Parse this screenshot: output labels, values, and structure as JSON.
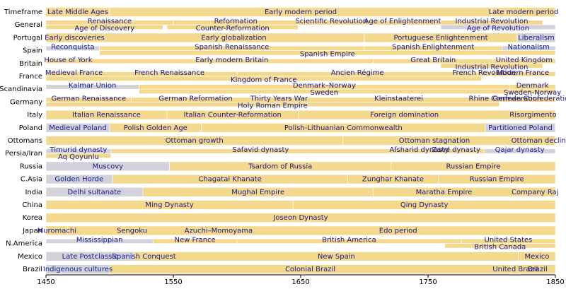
{
  "chart_data": {
    "type": "timeline",
    "xlim": [
      1450,
      1850
    ],
    "xticks": [
      1450,
      1550,
      1650,
      1750,
      1850
    ],
    "rows": [
      {
        "name": "Timeframe",
        "segments": [
          {
            "label": "Late Middle Ages",
            "start": 1450,
            "end": 1500,
            "color": "#f3d98e"
          },
          {
            "label": "Early modern period",
            "start": 1500,
            "end": 1800,
            "color": "#f3d98e"
          },
          {
            "label": "Late modern period",
            "start": 1800,
            "end": 1850,
            "color": "#f3d98e"
          }
        ]
      },
      {
        "name": "General",
        "segments": [
          {
            "label": "Renaissance",
            "start": 1450,
            "end": 1550,
            "color": "#f3d98e"
          },
          {
            "label": "Age of Discovery",
            "start": 1450,
            "end": 1542,
            "color": "#f3d98e"
          },
          {
            "label": "Reformation",
            "start": 1550,
            "end": 1648,
            "color": "#f3d98e"
          },
          {
            "label": "Counter-Reformation",
            "start": 1545,
            "end": 1648,
            "color": "#f3d98e"
          },
          {
            "label": "Scientific Revolution",
            "start": 1648,
            "end": 1700,
            "color": "#f3d98e"
          },
          {
            "label": "Age of Enlightenment",
            "start": 1700,
            "end": 1760,
            "color": "#f3d98e"
          },
          {
            "label": "Industrial Revolution",
            "start": 1760,
            "end": 1840,
            "color": "#f3d98e"
          },
          {
            "label": "Age of Revolution",
            "start": 1760,
            "end": 1850,
            "color": "#d2d2da"
          }
        ]
      },
      {
        "name": "Portugal",
        "segments": [
          {
            "label": "Early discoveries",
            "start": 1450,
            "end": 1495,
            "color": "#f3d98e"
          },
          {
            "label": "Early globalization",
            "start": 1495,
            "end": 1700,
            "color": "#f3d98e"
          },
          {
            "label": "Portuguese Enlightenment",
            "start": 1700,
            "end": 1820,
            "color": "#f3d98e"
          },
          {
            "label": "Liberalism",
            "start": 1820,
            "end": 1850,
            "color": "#d2d2da"
          }
        ]
      },
      {
        "name": "Spain",
        "segments": [
          {
            "label": "Reconquista",
            "start": 1450,
            "end": 1492,
            "color": "#d2d2da"
          },
          {
            "label": "Spanish Renaissance",
            "start": 1492,
            "end": 1700,
            "color": "#f3d98e"
          },
          {
            "label": "Spanish Enlightenment",
            "start": 1700,
            "end": 1808,
            "color": "#f3d98e"
          },
          {
            "label": "Nationalism",
            "start": 1808,
            "end": 1850,
            "color": "#d2d2da"
          },
          {
            "label": "Spanish Empire",
            "start": 1492,
            "end": 1850,
            "color": "#f3d98e"
          }
        ]
      },
      {
        "name": "Britain",
        "segments": [
          {
            "label": "House of York",
            "start": 1450,
            "end": 1485,
            "color": "#f3d98e"
          },
          {
            "label": "Early modern Britain",
            "start": 1485,
            "end": 1707,
            "color": "#f3d98e"
          },
          {
            "label": "Great Britain",
            "start": 1707,
            "end": 1801,
            "color": "#f3d98e"
          },
          {
            "label": "United Kingdom",
            "start": 1801,
            "end": 1850,
            "color": "#f3d98e"
          },
          {
            "label": "Industrial Revolution",
            "start": 1760,
            "end": 1840,
            "color": "#f3d98e"
          }
        ]
      },
      {
        "name": "France",
        "segments": [
          {
            "label": "Medieval France",
            "start": 1450,
            "end": 1494,
            "color": "#f3d98e"
          },
          {
            "label": "French Renaissance",
            "start": 1494,
            "end": 1600,
            "color": "#f3d98e"
          },
          {
            "label": "Ancien Régime",
            "start": 1600,
            "end": 1789,
            "color": "#f3d98e"
          },
          {
            "label": "French Revolution",
            "start": 1789,
            "end": 1799,
            "color": "#f3d98e"
          },
          {
            "label": "Modern France",
            "start": 1799,
            "end": 1850,
            "color": "#f3d98e"
          },
          {
            "label": "Kingdom of France",
            "start": 1450,
            "end": 1792,
            "color": "#f3d98e"
          }
        ]
      },
      {
        "name": "Scandinavia",
        "segments": [
          {
            "label": "Kalmar Union",
            "start": 1450,
            "end": 1523,
            "color": "#d2d2da"
          },
          {
            "label": "Denmark–Norway",
            "start": 1523,
            "end": 1814,
            "color": "#f3d98e"
          },
          {
            "label": "Denmark",
            "start": 1814,
            "end": 1850,
            "color": "#f3d98e"
          },
          {
            "label": "Sweden",
            "start": 1523,
            "end": 1814,
            "color": "#f3d98e"
          },
          {
            "label": "Sweden-Norway",
            "start": 1814,
            "end": 1850,
            "color": "#f3d98e"
          }
        ]
      },
      {
        "name": "Germany",
        "segments": [
          {
            "label": "German Renaissance",
            "start": 1450,
            "end": 1517,
            "color": "#f3d98e"
          },
          {
            "label": "German Reformation",
            "start": 1517,
            "end": 1618,
            "color": "#f3d98e"
          },
          {
            "label": "Thirty Years War",
            "start": 1618,
            "end": 1648,
            "color": "#f3d98e"
          },
          {
            "label": "Kleinstaaterei",
            "start": 1648,
            "end": 1806,
            "color": "#f3d98e"
          },
          {
            "label": "Rhine Confederation",
            "start": 1806,
            "end": 1815,
            "color": "#f3d98e"
          },
          {
            "label": "German Confederation",
            "start": 1815,
            "end": 1850,
            "color": "#f3d98e"
          },
          {
            "label": "Holy Roman Empire",
            "start": 1450,
            "end": 1806,
            "color": "#f3d98e"
          }
        ]
      },
      {
        "name": "Italy",
        "segments": [
          {
            "label": "Italian Renaissance",
            "start": 1450,
            "end": 1545,
            "color": "#f3d98e"
          },
          {
            "label": "Italian Counter-Reformation",
            "start": 1545,
            "end": 1648,
            "color": "#f3d98e"
          },
          {
            "label": "Foreign domination",
            "start": 1648,
            "end": 1815,
            "color": "#f3d98e"
          },
          {
            "label": "Risorgimento",
            "start": 1815,
            "end": 1850,
            "color": "#f3d98e"
          }
        ]
      },
      {
        "name": "Poland",
        "segments": [
          {
            "label": "Medieval Poland",
            "start": 1450,
            "end": 1500,
            "color": "#d2d2da"
          },
          {
            "label": "Polish Golden Age",
            "start": 1500,
            "end": 1572,
            "color": "#f3d98e"
          },
          {
            "label": "Polish-Lithuanian Commonwealth",
            "start": 1572,
            "end": 1795,
            "color": "#f3d98e"
          },
          {
            "label": "Partitioned Poland",
            "start": 1795,
            "end": 1850,
            "color": "#d2d2da"
          }
        ]
      },
      {
        "name": "Ottomans",
        "segments": [
          {
            "label": "Ottoman growth",
            "start": 1450,
            "end": 1683,
            "color": "#f3d98e"
          },
          {
            "label": "Ottoman stagnation",
            "start": 1683,
            "end": 1827,
            "color": "#f3d98e"
          },
          {
            "label": "Ottoman decline",
            "start": 1827,
            "end": 1850,
            "color": "#f3d98e"
          }
        ]
      },
      {
        "name": "Persia/Iran",
        "segments": [
          {
            "label": "Timurid dynasty",
            "start": 1450,
            "end": 1501,
            "color": "#d2d2da"
          },
          {
            "label": "Safavid dynasty",
            "start": 1501,
            "end": 1736,
            "color": "#f3d98e"
          },
          {
            "label": "Afsharid dynasty",
            "start": 1736,
            "end": 1750,
            "color": "#f3d98e"
          },
          {
            "label": "Zand dynasty",
            "start": 1750,
            "end": 1794,
            "color": "#f3d98e"
          },
          {
            "label": "Qajar dynasty",
            "start": 1794,
            "end": 1850,
            "color": "#d2d2da"
          },
          {
            "label": "Aq Qoyunlu",
            "start": 1450,
            "end": 1501,
            "color": "#f3d98e"
          }
        ]
      },
      {
        "name": "Russia",
        "segments": [
          {
            "label": "Muscovy",
            "start": 1450,
            "end": 1547,
            "color": "#d2d2da"
          },
          {
            "label": "Tsardom of Russia",
            "start": 1547,
            "end": 1721,
            "color": "#f3d98e"
          },
          {
            "label": "Russian Empire",
            "start": 1721,
            "end": 1850,
            "color": "#f3d98e"
          }
        ]
      },
      {
        "name": "C.Asia",
        "segments": [
          {
            "label": "Golden Horde",
            "start": 1450,
            "end": 1502,
            "color": "#d2d2da"
          },
          {
            "label": "Chagatai Khanate",
            "start": 1502,
            "end": 1687,
            "color": "#f3d98e"
          },
          {
            "label": "Zunghar Khanate",
            "start": 1687,
            "end": 1758,
            "color": "#f3d98e"
          },
          {
            "label": "Russian Empire",
            "start": 1758,
            "end": 1850,
            "color": "#f3d98e"
          }
        ]
      },
      {
        "name": "India",
        "segments": [
          {
            "label": "Delhi sultanate",
            "start": 1450,
            "end": 1526,
            "color": "#d2d2da"
          },
          {
            "label": "Mughal Empire",
            "start": 1526,
            "end": 1707,
            "color": "#f3d98e"
          },
          {
            "label": "Maratha Empire",
            "start": 1707,
            "end": 1818,
            "color": "#f3d98e"
          },
          {
            "label": "Company Raj",
            "start": 1818,
            "end": 1850,
            "color": "#f3d98e"
          }
        ]
      },
      {
        "name": "China",
        "segments": [
          {
            "label": "Ming Dynasty",
            "start": 1450,
            "end": 1644,
            "color": "#f3d98e"
          },
          {
            "label": "Qing Dynasty",
            "start": 1644,
            "end": 1850,
            "color": "#f3d98e"
          }
        ]
      },
      {
        "name": "Korea",
        "segments": [
          {
            "label": "Joseon Dynasty",
            "start": 1450,
            "end": 1850,
            "color": "#f3d98e"
          }
        ]
      },
      {
        "name": "Japan",
        "segments": [
          {
            "label": "Muromachi",
            "start": 1450,
            "end": 1467,
            "color": "#f3d98e"
          },
          {
            "label": "Sengoku",
            "start": 1467,
            "end": 1568,
            "color": "#f3d98e"
          },
          {
            "label": "Azuchi–Momoyama",
            "start": 1568,
            "end": 1603,
            "color": "#f3d98e"
          },
          {
            "label": "Edo period",
            "start": 1603,
            "end": 1850,
            "color": "#f3d98e"
          }
        ]
      },
      {
        "name": "N.America",
        "segments": [
          {
            "label": "Mississippian",
            "start": 1450,
            "end": 1534,
            "color": "#d2d2da"
          },
          {
            "label": "New France",
            "start": 1534,
            "end": 1600,
            "color": "#f3d98e"
          },
          {
            "label": "British America",
            "start": 1600,
            "end": 1776,
            "color": "#f3d98e"
          },
          {
            "label": "United States",
            "start": 1776,
            "end": 1850,
            "color": "#f3d98e"
          },
          {
            "label": "British Canada",
            "start": 1763,
            "end": 1850,
            "color": "#f3d98e"
          }
        ]
      },
      {
        "name": "Mexico",
        "segments": [
          {
            "label": "Late Postclassic",
            "start": 1450,
            "end": 1519,
            "color": "#d2d2da"
          },
          {
            "label": "Spanish Conquest",
            "start": 1519,
            "end": 1535,
            "color": "#f3d98e"
          },
          {
            "label": "New Spain",
            "start": 1535,
            "end": 1821,
            "color": "#f3d98e"
          },
          {
            "label": "Mexico",
            "start": 1821,
            "end": 1850,
            "color": "#f3d98e"
          }
        ]
      },
      {
        "name": "Brazil",
        "segments": [
          {
            "label": "Indigenous cultures",
            "start": 1450,
            "end": 1500,
            "color": "#d2d2da"
          },
          {
            "label": "Colonial Brazil",
            "start": 1500,
            "end": 1815,
            "color": "#f3d98e"
          },
          {
            "label": "United Brazil",
            "start": 1815,
            "end": 1822,
            "color": "#f3d98e"
          },
          {
            "label": "Brazil",
            "start": 1822,
            "end": 1850,
            "color": "#f3d98e"
          }
        ]
      }
    ]
  }
}
